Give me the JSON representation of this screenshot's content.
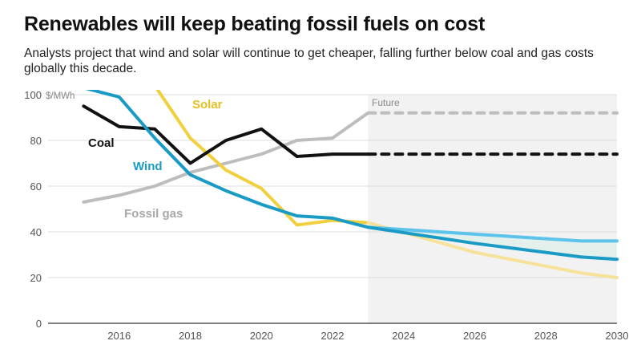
{
  "title": "Renewables will keep beating fossil fuels on cost",
  "subtitle": "Analysts project that wind and solar will continue to get cheaper, falling further below coal and gas costs globally this decade.",
  "colors": {
    "coal": "#111111",
    "wind": "#1a9bc5",
    "wind_future": "#5cc3ea",
    "solar": "#f2cf3c",
    "solar_future": "#f7e29a",
    "gas": "#bdbdbd",
    "band": "#e3f0ec",
    "future_bg": "#f2f2f2"
  },
  "chart_data": {
    "type": "line",
    "y_unit": "$/MWh",
    "xlim": [
      2014,
      2030
    ],
    "ylim": [
      0,
      100
    ],
    "x_ticks": [
      2016,
      2018,
      2020,
      2022,
      2024,
      2026,
      2028,
      2030
    ],
    "y_ticks": [
      0,
      20,
      40,
      60,
      80,
      100
    ],
    "future_label": "Future",
    "future_start": 2023,
    "series": [
      {
        "key": "coal",
        "name": "Coal",
        "x": [
          2015,
          2016,
          2017,
          2018,
          2019,
          2020,
          2021,
          2022,
          2023
        ],
        "values": [
          95,
          86,
          85,
          70,
          80,
          85,
          73,
          74,
          74
        ],
        "future": [
          [
            2023,
            74
          ],
          [
            2030,
            74
          ]
        ],
        "future_style": "dashed"
      },
      {
        "key": "gas",
        "name": "Fossil gas",
        "x": [
          2015,
          2016,
          2017,
          2018,
          2019,
          2020,
          2021,
          2022,
          2023
        ],
        "values": [
          53,
          56,
          60,
          66,
          70,
          74,
          80,
          81,
          92
        ],
        "future": [
          [
            2023,
            92
          ],
          [
            2030,
            92
          ]
        ],
        "future_style": "dashed"
      },
      {
        "key": "solar",
        "name": "Solar",
        "x": [
          2017,
          2018,
          2019,
          2020,
          2021,
          2022,
          2023
        ],
        "values": [
          104,
          81,
          67,
          59,
          43,
          45,
          44
        ],
        "future": [
          [
            2023,
            44
          ],
          [
            2026,
            31
          ],
          [
            2029,
            22
          ],
          [
            2030,
            20
          ]
        ],
        "future_style": "solid"
      },
      {
        "key": "wind",
        "name": "Wind",
        "x": [
          2015,
          2016,
          2017,
          2018,
          2019,
          2020,
          2021,
          2022,
          2023
        ],
        "values": [
          103,
          99,
          81,
          65,
          58,
          52,
          47,
          46,
          42
        ],
        "future_upper": [
          [
            2023,
            42
          ],
          [
            2026,
            39
          ],
          [
            2029,
            36
          ],
          [
            2030,
            36
          ]
        ],
        "future_lower": [
          [
            2023,
            42
          ],
          [
            2026,
            35
          ],
          [
            2029,
            29
          ],
          [
            2030,
            28
          ]
        ],
        "future_style": "band"
      }
    ]
  }
}
